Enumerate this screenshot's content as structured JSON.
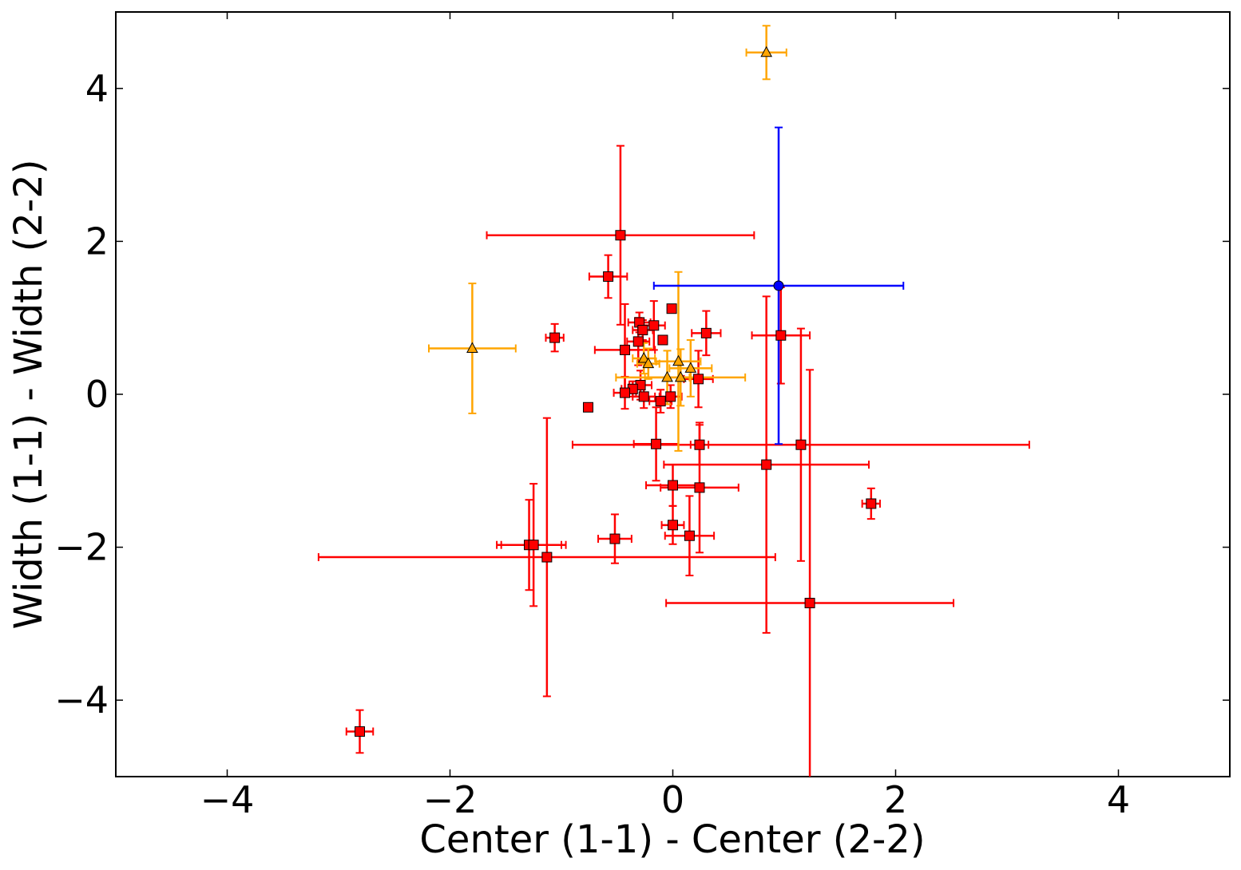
{
  "chart_data": {
    "type": "scatter",
    "xlabel": "Center (1-1) - Center (2-2)",
    "ylabel": "Width (1-1) - Width (2-2)",
    "xlim": [
      -5,
      5
    ],
    "ylim": [
      -5,
      5
    ],
    "x_ticks": [
      -4,
      -2,
      0,
      2,
      4
    ],
    "y_ticks": [
      -4,
      -2,
      0,
      2,
      4
    ],
    "x_tick_labels": [
      "−4",
      "−2",
      "0",
      "2",
      "4"
    ],
    "y_tick_labels": [
      "−4",
      "−2",
      "0",
      "2",
      "4"
    ],
    "grid": false,
    "series": [
      {
        "color": "#ff0000",
        "marker": "square",
        "points": [
          {
            "x": -0.47,
            "y": 2.08,
            "xerr": 1.2,
            "yerr": 1.17
          },
          {
            "x": -0.58,
            "y": 1.54,
            "xerr": 0.17,
            "yerr": 0.28
          },
          {
            "x": -0.01,
            "y": 1.12,
            "xerr": 0,
            "yerr": 0
          },
          {
            "x": -1.06,
            "y": 0.74,
            "xerr": 0.08,
            "yerr": 0.18
          },
          {
            "x": -0.3,
            "y": 0.94,
            "xerr": 0.1,
            "yerr": 0.13
          },
          {
            "x": -0.27,
            "y": 0.84,
            "xerr": 0.09,
            "yerr": 0.13
          },
          {
            "x": -0.17,
            "y": 0.9,
            "xerr": 0.1,
            "yerr": 0.32
          },
          {
            "x": -0.09,
            "y": 0.71,
            "xerr": 0,
            "yerr": 0
          },
          {
            "x": -0.31,
            "y": 0.69,
            "xerr": 0.1,
            "yerr": 0.31
          },
          {
            "x": -0.43,
            "y": 0.58,
            "xerr": 0.27,
            "yerr": 0.6
          },
          {
            "x": 0.3,
            "y": 0.8,
            "xerr": 0.13,
            "yerr": 0.29
          },
          {
            "x": 0.97,
            "y": 0.77,
            "xerr": 0.26,
            "yerr": 0.63
          },
          {
            "x": 0.23,
            "y": 0.2,
            "xerr": 0.13,
            "yerr": 0.37
          },
          {
            "x": -0.29,
            "y": 0.12,
            "xerr": 0.1,
            "yerr": 0.19
          },
          {
            "x": -0.36,
            "y": 0.07,
            "xerr": 0.1,
            "yerr": 0.1
          },
          {
            "x": -0.43,
            "y": 0.02,
            "xerr": 0.1,
            "yerr": 0.21
          },
          {
            "x": -0.26,
            "y": -0.03,
            "xerr": 0.1,
            "yerr": 0.15
          },
          {
            "x": -0.02,
            "y": -0.03,
            "xerr": 0.1,
            "yerr": 0.15
          },
          {
            "x": -0.11,
            "y": -0.09,
            "xerr": 0.1,
            "yerr": 0.15
          },
          {
            "x": -0.76,
            "y": -0.17,
            "xerr": 0,
            "yerr": 0
          },
          {
            "x": -0.15,
            "y": -0.65,
            "xerr": 0.2,
            "yerr": 0.48
          },
          {
            "x": 0.24,
            "y": -0.66,
            "xerr": 0.08,
            "yerr": 0.26
          },
          {
            "x": 1.15,
            "y": -0.66,
            "xerr": 2.05,
            "yerr": 1.52
          },
          {
            "x": 0.84,
            "y": -0.92,
            "xerr": 0.92,
            "yerr": 2.2
          },
          {
            "x": 0.0,
            "y": -1.19,
            "xerr": 0.24,
            "yerr": 0.27
          },
          {
            "x": 0.24,
            "y": -1.22,
            "xerr": 0.35,
            "yerr": 0.85
          },
          {
            "x": 1.78,
            "y": -1.43,
            "xerr": 0.08,
            "yerr": 0.2
          },
          {
            "x": 0.0,
            "y": -1.71,
            "xerr": 0.1,
            "yerr": 0.25
          },
          {
            "x": 0.15,
            "y": -1.85,
            "xerr": 0.22,
            "yerr": 0.52
          },
          {
            "x": -0.52,
            "y": -1.89,
            "xerr": 0.15,
            "yerr": 0.32
          },
          {
            "x": -1.29,
            "y": -1.97,
            "xerr": 0.29,
            "yerr": 0.59
          },
          {
            "x": -1.25,
            "y": -1.97,
            "xerr": 0.29,
            "yerr": 0.8
          },
          {
            "x": -1.13,
            "y": -2.13,
            "xerr": 2.05,
            "yerr": 1.82
          },
          {
            "x": 1.23,
            "y": -2.73,
            "xerr": 1.29,
            "yerr": 3.05
          },
          {
            "x": -2.81,
            "y": -4.41,
            "xerr": 0.12,
            "yerr": 0.28
          }
        ]
      },
      {
        "color": "#ffa500",
        "marker": "triangle",
        "points": [
          {
            "x": 0.84,
            "y": 4.47,
            "xerr": 0.18,
            "yerr": 0.35
          },
          {
            "x": -1.8,
            "y": 0.6,
            "xerr": 0.39,
            "yerr": 0.85
          },
          {
            "x": -0.26,
            "y": 0.47,
            "xerr": 0.1,
            "yerr": 0.2
          },
          {
            "x": -0.22,
            "y": 0.4,
            "xerr": 0.1,
            "yerr": 0.2
          },
          {
            "x": 0.05,
            "y": 0.43,
            "xerr": 0.2,
            "yerr": 1.17
          },
          {
            "x": 0.16,
            "y": 0.34,
            "xerr": 0.19,
            "yerr": 0.37
          },
          {
            "x": -0.05,
            "y": 0.22,
            "xerr": 0.2,
            "yerr": 0.35
          },
          {
            "x": 0.07,
            "y": 0.22,
            "xerr": 0.58,
            "yerr": 0.37
          }
        ]
      },
      {
        "color": "#0000ff",
        "marker": "circle",
        "points": [
          {
            "x": 0.95,
            "y": 1.42,
            "xerr": 1.12,
            "yerr": 2.07
          }
        ]
      }
    ]
  }
}
